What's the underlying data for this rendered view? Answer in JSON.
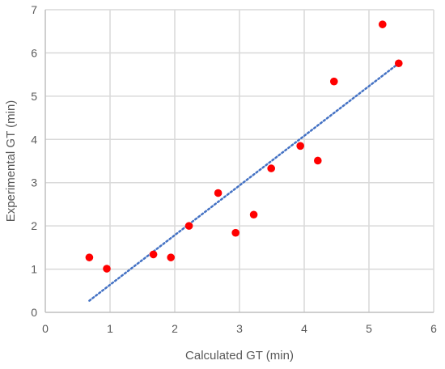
{
  "chart_data": {
    "type": "scatter",
    "xlabel": "Calculated GT (min)",
    "ylabel": "Experimental GT (min)",
    "xlim": [
      0,
      6
    ],
    "ylim": [
      0,
      7
    ],
    "x_ticks": [
      0,
      1,
      2,
      3,
      4,
      5,
      6
    ],
    "y_ticks": [
      0,
      1,
      2,
      3,
      4,
      5,
      6,
      7
    ],
    "grid": true,
    "series": [
      {
        "marker_color": "#ff0000",
        "points": [
          {
            "x": 0.68,
            "y": 1.27
          },
          {
            "x": 0.95,
            "y": 1.01
          },
          {
            "x": 1.67,
            "y": 1.34
          },
          {
            "x": 1.94,
            "y": 1.27
          },
          {
            "x": 2.22,
            "y": 2.0
          },
          {
            "x": 2.67,
            "y": 2.76
          },
          {
            "x": 2.94,
            "y": 1.84
          },
          {
            "x": 3.22,
            "y": 2.26
          },
          {
            "x": 3.49,
            "y": 3.33
          },
          {
            "x": 3.94,
            "y": 3.85
          },
          {
            "x": 4.21,
            "y": 3.51
          },
          {
            "x": 4.46,
            "y": 5.34
          },
          {
            "x": 5.21,
            "y": 6.66
          },
          {
            "x": 5.46,
            "y": 5.76
          }
        ]
      }
    ],
    "trendline": {
      "type": "linear",
      "style": "dotted",
      "color": "#4472c4",
      "x_start": 0.68,
      "y_start": 0.27,
      "x_end": 5.46,
      "y_end": 5.76
    }
  }
}
